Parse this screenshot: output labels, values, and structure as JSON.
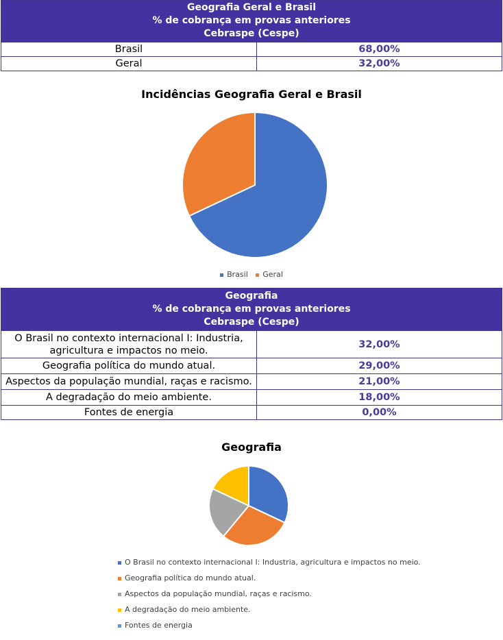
{
  "table1": {
    "title_lines": [
      "Geografia Geral e Brasil",
      "% de cobrança em provas anteriores",
      "Cebraspe (Cespe)"
    ],
    "rows": [
      {
        "label": "Brasil",
        "value": "68,00%"
      },
      {
        "label": "Geral",
        "value": "32,00%"
      }
    ]
  },
  "table2": {
    "title_lines": [
      "Geografia",
      "% de cobrança em provas anteriores",
      "Cebraspe (Cespe)"
    ],
    "rows": [
      {
        "label": "O Brasil no contexto internacional I: Industria, agricultura e impactos no meio.",
        "value": "32,00%"
      },
      {
        "label": "Geografia política do mundo atual.",
        "value": "29,00%"
      },
      {
        "label": "Aspectos da população mundial, raças e racismo.",
        "value": "21,00%"
      },
      {
        "label": "A degradação do meio ambiente.",
        "value": "18,00%"
      },
      {
        "label": "Fontes de energia",
        "value": "0,00%"
      }
    ]
  },
  "chart_data": [
    {
      "type": "pie",
      "title": "Incidências Geografia Geral e Brasil",
      "categories": [
        "Brasil",
        "Geral"
      ],
      "values": [
        68,
        32
      ],
      "colors": [
        "#4472c4",
        "#ed7d31"
      ],
      "legend": "bottom"
    },
    {
      "type": "pie",
      "title": "Geografia",
      "categories": [
        "O Brasil no contexto internacional I: Industria, agricultura e impactos no meio.",
        "Geografia política do mundo atual.",
        "Aspectos da população mundial, raças e racismo.",
        "A degradação do meio ambiente.",
        "Fontes de energia"
      ],
      "values": [
        32,
        29,
        21,
        18,
        0
      ],
      "colors": [
        "#4472c4",
        "#ed7d31",
        "#a5a5a5",
        "#ffc000",
        "#5b9bd5"
      ],
      "legend": "bottom"
    }
  ]
}
